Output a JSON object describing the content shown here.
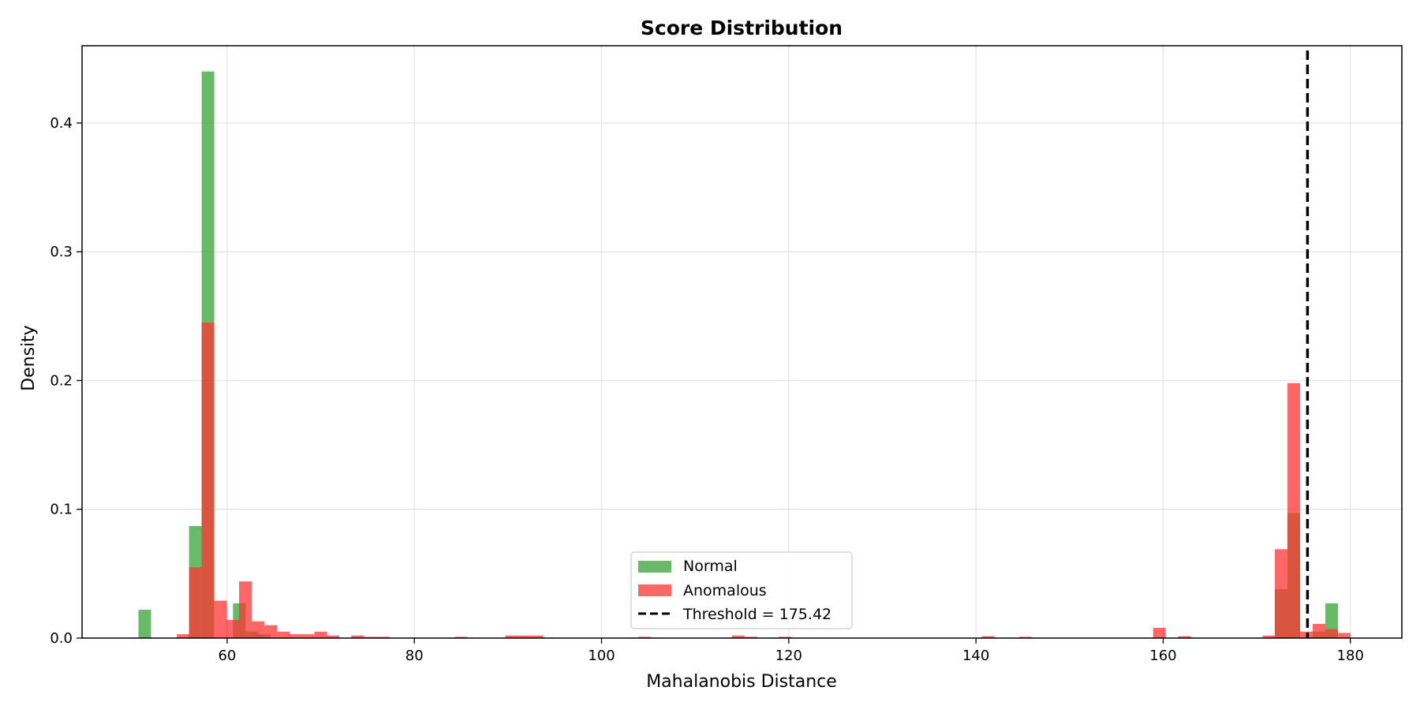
{
  "chart_data": {
    "type": "bar",
    "title": "Score Distribution",
    "xlabel": "Mahalanobis Distance",
    "ylabel": "Density",
    "xlim": [
      44.5,
      185.5
    ],
    "ylim": [
      0,
      0.46
    ],
    "x_ticks": [
      60,
      80,
      100,
      120,
      140,
      160,
      180
    ],
    "y_ticks": [
      0.0,
      0.1,
      0.2,
      0.3,
      0.4
    ],
    "x_tick_labels": [
      "60",
      "80",
      "100",
      "120",
      "140",
      "160",
      "180"
    ],
    "y_tick_labels": [
      "0.0",
      "0.1",
      "0.2",
      "0.3",
      "0.4"
    ],
    "grid": true,
    "legend_position": "bottom-center",
    "bin_width": 1.35,
    "series": [
      {
        "name": "Normal",
        "color": "#2ca02c",
        "opacity": 0.72,
        "bins": [
          {
            "x": 51.2,
            "y": 0.022
          },
          {
            "x": 56.6,
            "y": 0.087
          },
          {
            "x": 57.95,
            "y": 0.44
          },
          {
            "x": 61.3,
            "y": 0.027
          },
          {
            "x": 62.65,
            "y": 0.005
          },
          {
            "x": 63.95,
            "y": 0.003
          },
          {
            "x": 172.6,
            "y": 0.038
          },
          {
            "x": 173.95,
            "y": 0.097
          },
          {
            "x": 176.65,
            "y": 0.005
          },
          {
            "x": 178.0,
            "y": 0.027
          }
        ]
      },
      {
        "name": "Anomalous",
        "color": "#ff3333",
        "opacity": 0.75,
        "bins": [
          {
            "x": 55.3,
            "y": 0.003
          },
          {
            "x": 56.6,
            "y": 0.055
          },
          {
            "x": 57.95,
            "y": 0.245
          },
          {
            "x": 59.3,
            "y": 0.029
          },
          {
            "x": 60.6,
            "y": 0.014
          },
          {
            "x": 61.95,
            "y": 0.044
          },
          {
            "x": 63.3,
            "y": 0.013
          },
          {
            "x": 64.65,
            "y": 0.01
          },
          {
            "x": 66.0,
            "y": 0.005
          },
          {
            "x": 67.3,
            "y": 0.003
          },
          {
            "x": 68.65,
            "y": 0.003
          },
          {
            "x": 70.0,
            "y": 0.005
          },
          {
            "x": 71.3,
            "y": 0.002
          },
          {
            "x": 73.95,
            "y": 0.002
          },
          {
            "x": 75.3,
            "y": 0.001
          },
          {
            "x": 76.65,
            "y": 0.001
          },
          {
            "x": 85.0,
            "y": 0.001
          },
          {
            "x": 90.4,
            "y": 0.002
          },
          {
            "x": 91.75,
            "y": 0.002
          },
          {
            "x": 93.1,
            "y": 0.002
          },
          {
            "x": 104.6,
            "y": 0.001
          },
          {
            "x": 114.6,
            "y": 0.002
          },
          {
            "x": 115.95,
            "y": 0.001
          },
          {
            "x": 119.6,
            "y": 0.001
          },
          {
            "x": 141.3,
            "y": 0.0015
          },
          {
            "x": 145.3,
            "y": 0.001
          },
          {
            "x": 159.6,
            "y": 0.008
          },
          {
            "x": 162.3,
            "y": 0.0015
          },
          {
            "x": 171.3,
            "y": 0.002
          },
          {
            "x": 172.6,
            "y": 0.069
          },
          {
            "x": 173.95,
            "y": 0.198
          },
          {
            "x": 175.3,
            "y": 0.005
          },
          {
            "x": 176.65,
            "y": 0.011
          },
          {
            "x": 178.0,
            "y": 0.007
          },
          {
            "x": 179.35,
            "y": 0.004
          }
        ]
      }
    ],
    "threshold": {
      "label": "Threshold = 175.42",
      "value": 175.42,
      "color": "#000000",
      "style": "dashed"
    },
    "legend": [
      "Normal",
      "Anomalous",
      "Threshold = 175.42"
    ]
  }
}
